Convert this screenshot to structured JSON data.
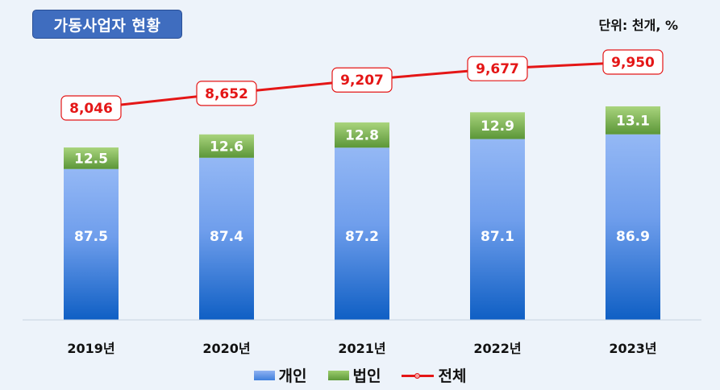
{
  "header": {
    "title": "가동사업자 현황",
    "unit": "단위: 천개, %"
  },
  "chart_data": {
    "type": "bar",
    "stacked": true,
    "categories": [
      "2019년",
      "2020년",
      "2021년",
      "2022년",
      "2023년"
    ],
    "series": [
      {
        "name": "개인",
        "type": "bar",
        "values": [
          87.5,
          87.4,
          87.2,
          87.1,
          86.9
        ],
        "color": "#4a86e0"
      },
      {
        "name": "법인",
        "type": "bar",
        "values": [
          12.5,
          12.6,
          12.8,
          12.9,
          13.1
        ],
        "color": "#6ea84a"
      },
      {
        "name": "전체",
        "type": "line",
        "values": [
          8046,
          8652,
          9207,
          9677,
          9950
        ],
        "labels": [
          "8,046",
          "8,652",
          "9,207",
          "9,677",
          "9,950"
        ],
        "color": "#e41616"
      }
    ],
    "legend_position": "bottom",
    "grid": false
  }
}
